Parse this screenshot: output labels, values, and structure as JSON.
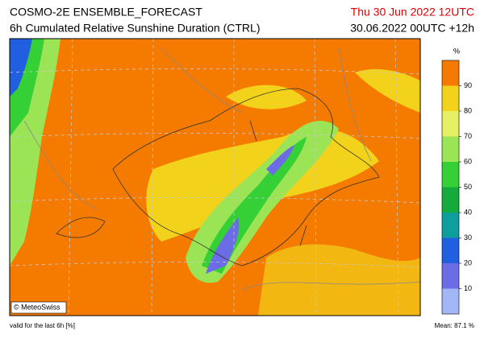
{
  "header": {
    "title": "COSMO-2E ENSEMBLE_FORECAST",
    "subtitle": "6h Cumulated Relative Sunshine Duration (CTRL)",
    "valid_time": "Thu 30 Jun 2022 12UTC",
    "run_time": "30.06.2022 00UTC +12h"
  },
  "map": {
    "credit": "© MeteoSwiss"
  },
  "legend": {
    "unit": "%",
    "range": [
      0,
      100
    ],
    "ticks": [
      10,
      20,
      30,
      40,
      50,
      60,
      70,
      80,
      90
    ],
    "colors": [
      "#a3b6f5",
      "#6c6ce6",
      "#1f5fe0",
      "#0e9e9e",
      "#14aa3c",
      "#35d035",
      "#9be455",
      "#e6f064",
      "#f2d21a",
      "#f57a00"
    ]
  },
  "footer": {
    "note": "valid for the last 6h [%]",
    "mean": "Mean:  87.1 %"
  }
}
